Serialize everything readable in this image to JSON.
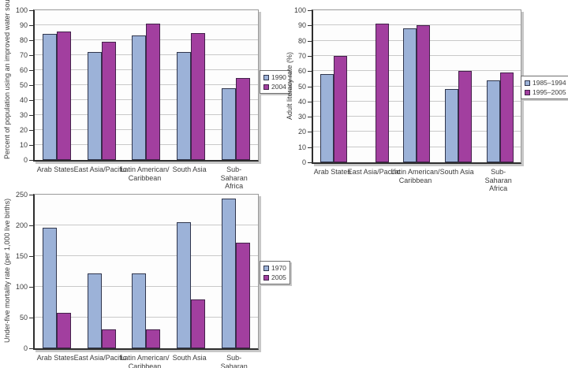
{
  "page": {
    "background": "#ffffff"
  },
  "colors": {
    "background": "#ffffff",
    "series1_fill": "#9cb2d8",
    "series1_edge": "#30364d",
    "series2_fill": "#a23f9f",
    "series2_edge": "#43214a",
    "gridline": "#c9c9c9",
    "axis_line": "#2e2e2e",
    "plot_border": "#9a9a9a",
    "text": "#3c3c3c"
  },
  "chart_data": [
    {
      "type": "bar",
      "position": "top-left",
      "title": "",
      "xlabel": "",
      "ylabel": "Percent of population using an improved water source",
      "ylim": [
        0,
        100
      ],
      "ytick_step": 10,
      "grid": true,
      "legend_position": "right",
      "categories": [
        "Arab States",
        "East Asia/Pacific",
        "Latin American/\nCaribbean",
        "South Asia",
        "Sub-Saharan Africa"
      ],
      "series": [
        {
          "name": "1990",
          "values": [
            84,
            72,
            83,
            72,
            48
          ]
        },
        {
          "name": "2004",
          "values": [
            86,
            79,
            91,
            85,
            55
          ]
        }
      ]
    },
    {
      "type": "bar",
      "position": "top-right",
      "title": "",
      "xlabel": "",
      "ylabel": "Adult literacy rate (%)",
      "ylim": [
        0,
        100
      ],
      "ytick_step": 10,
      "grid": true,
      "legend_position": "right",
      "categories": [
        "Arab States",
        "East Asia/Pacific",
        "Latin American/\nCaribbean",
        "South Asia",
        "Sub-Saharan Africa"
      ],
      "series": [
        {
          "name": "1985–1994",
          "values": [
            58,
            null,
            88,
            48,
            54
          ]
        },
        {
          "name": "1995–2005",
          "values": [
            70,
            91,
            90,
            60,
            59
          ]
        }
      ]
    },
    {
      "type": "bar",
      "position": "bottom-left",
      "title": "",
      "xlabel": "",
      "ylabel": "Under-five mortality rate (per 1,000 live births)",
      "ylim": [
        0,
        250
      ],
      "ytick_step": 50,
      "grid": true,
      "legend_position": "right",
      "categories": [
        "Arab States",
        "East Asia/Pacific",
        "Latin American/\nCaribbean",
        "South Asia",
        "Sub-Saharan Africa"
      ],
      "series": [
        {
          "name": "1970",
          "values": [
            196,
            122,
            122,
            205,
            244
          ]
        },
        {
          "name": "2005",
          "values": [
            58,
            31,
            31,
            79,
            172
          ]
        }
      ]
    }
  ]
}
